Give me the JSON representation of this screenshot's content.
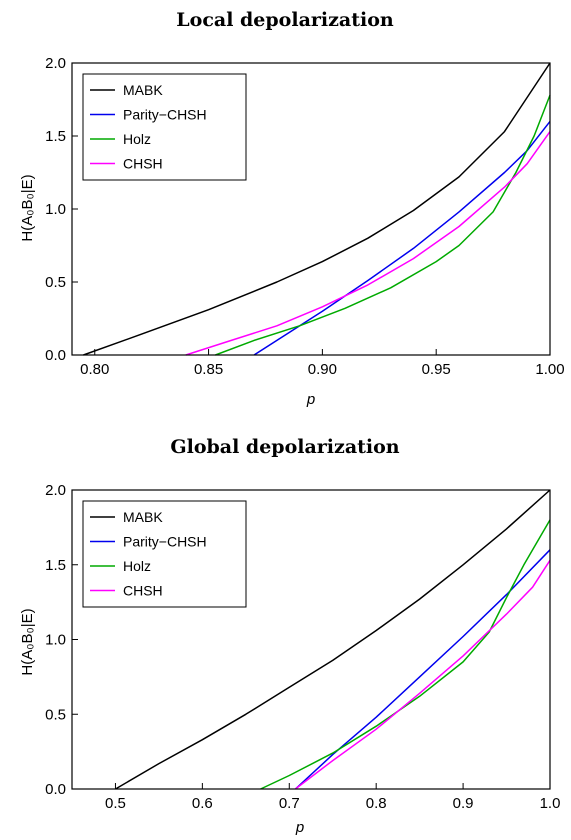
{
  "chart_data": [
    {
      "type": "line",
      "title": "Local depolarization",
      "xlabel": "p",
      "ylabel": "H(A₀B₀|E)",
      "xlim": [
        0.79,
        1.0
      ],
      "ylim": [
        0,
        2.0
      ],
      "xticks": [
        "0.80",
        "0.85",
        "0.90",
        "0.95",
        "1.00"
      ],
      "yticks": [
        "0.0",
        "0.5",
        "1.0",
        "1.5",
        "2.0"
      ],
      "legend_position": "top-left",
      "series": [
        {
          "name": "MABK",
          "color": "#000000",
          "x": [
            0.795,
            0.82,
            0.85,
            0.88,
            0.9,
            0.92,
            0.94,
            0.96,
            0.98,
            1.0
          ],
          "y": [
            0.0,
            0.14,
            0.31,
            0.5,
            0.64,
            0.8,
            0.99,
            1.22,
            1.53,
            2.0
          ]
        },
        {
          "name": "Parity−CHSH",
          "color": "#0000ee",
          "x": [
            0.87,
            0.88,
            0.9,
            0.92,
            0.94,
            0.96,
            0.98,
            0.99,
            1.0
          ],
          "y": [
            0.0,
            0.1,
            0.3,
            0.51,
            0.73,
            0.98,
            1.25,
            1.4,
            1.6
          ]
        },
        {
          "name": "Holz",
          "color": "#00aa00",
          "x": [
            0.853,
            0.87,
            0.89,
            0.91,
            0.93,
            0.95,
            0.96,
            0.975,
            0.985,
            0.993,
            1.0
          ],
          "y": [
            0.0,
            0.1,
            0.2,
            0.32,
            0.46,
            0.64,
            0.75,
            0.98,
            1.25,
            1.5,
            1.78
          ]
        },
        {
          "name": "CHSH",
          "color": "#ff00ff",
          "x": [
            0.84,
            0.86,
            0.88,
            0.9,
            0.92,
            0.94,
            0.96,
            0.98,
            0.99,
            1.0
          ],
          "y": [
            0.0,
            0.1,
            0.2,
            0.33,
            0.48,
            0.66,
            0.88,
            1.15,
            1.31,
            1.53
          ]
        }
      ]
    },
    {
      "type": "line",
      "title": "Global depolarization",
      "xlabel": "p",
      "ylabel": "H(A₀B₀|E)",
      "xlim": [
        0.45,
        1.0
      ],
      "ylim": [
        0,
        2.0
      ],
      "xticks": [
        "0.5",
        "0.6",
        "0.7",
        "0.8",
        "0.9",
        "1.0"
      ],
      "yticks": [
        "0.0",
        "0.5",
        "1.0",
        "1.5",
        "2.0"
      ],
      "legend_position": "top-left",
      "series": [
        {
          "name": "MABK",
          "color": "#000000",
          "x": [
            0.5,
            0.55,
            0.6,
            0.65,
            0.7,
            0.75,
            0.8,
            0.85,
            0.9,
            0.95,
            1.0
          ],
          "y": [
            0.0,
            0.17,
            0.33,
            0.5,
            0.68,
            0.86,
            1.06,
            1.27,
            1.5,
            1.74,
            2.0
          ]
        },
        {
          "name": "Parity−CHSH",
          "color": "#0000ee",
          "x": [
            0.707,
            0.75,
            0.8,
            0.85,
            0.9,
            0.95,
            1.0
          ],
          "y": [
            0.0,
            0.23,
            0.48,
            0.75,
            1.02,
            1.3,
            1.6
          ]
        },
        {
          "name": "Holz",
          "color": "#00aa00",
          "x": [
            0.667,
            0.7,
            0.75,
            0.8,
            0.85,
            0.9,
            0.93,
            0.95,
            0.97,
            1.0
          ],
          "y": [
            0.0,
            0.09,
            0.24,
            0.42,
            0.62,
            0.85,
            1.05,
            1.28,
            1.5,
            1.8
          ]
        },
        {
          "name": "CHSH",
          "color": "#ff00ff",
          "x": [
            0.707,
            0.75,
            0.8,
            0.85,
            0.9,
            0.95,
            0.98,
            1.0
          ],
          "y": [
            0.0,
            0.19,
            0.4,
            0.64,
            0.89,
            1.17,
            1.35,
            1.53
          ]
        }
      ]
    }
  ]
}
